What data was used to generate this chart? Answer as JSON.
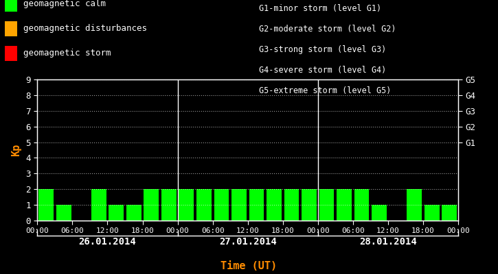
{
  "background_color": "#000000",
  "plot_bg_color": "#000000",
  "bar_color": "#00ff00",
  "axis_color": "#ffffff",
  "label_color_kp": "#ff8c00",
  "days": [
    "26.01.2014",
    "27.01.2014",
    "28.01.2014"
  ],
  "kp_day1": [
    2,
    1,
    0,
    2,
    1,
    1,
    2,
    2
  ],
  "kp_day2": [
    2,
    2,
    2,
    2,
    2,
    2,
    2,
    2
  ],
  "kp_day3": [
    2,
    2,
    2,
    1,
    0,
    2,
    1,
    1
  ],
  "ylim": [
    0,
    9
  ],
  "yticks": [
    0,
    1,
    2,
    3,
    4,
    5,
    6,
    7,
    8,
    9
  ],
  "right_labels": [
    [
      "G5",
      9
    ],
    [
      "G4",
      8
    ],
    [
      "G3",
      7
    ],
    [
      "G2",
      6
    ],
    [
      "G1",
      5
    ]
  ],
  "xtick_labels": [
    "00:00",
    "06:00",
    "12:00",
    "18:00",
    "00:00",
    "06:00",
    "12:00",
    "18:00",
    "00:00",
    "06:00",
    "12:00",
    "18:00",
    "00:00"
  ],
  "xlabel": "Time (UT)",
  "ylabel": "Kp",
  "legend_items": [
    {
      "label": "geomagnetic calm",
      "color": "#00ff00"
    },
    {
      "label": "geomagnetic disturbances",
      "color": "#ffa500"
    },
    {
      "label": "geomagnetic storm",
      "color": "#ff0000"
    }
  ],
  "right_legend_lines": [
    "G1-minor storm (level G1)",
    "G2-moderate storm (level G2)",
    "G3-strong storm (level G3)",
    "G4-severe storm (level G4)",
    "G5-extreme storm (level G5)"
  ]
}
